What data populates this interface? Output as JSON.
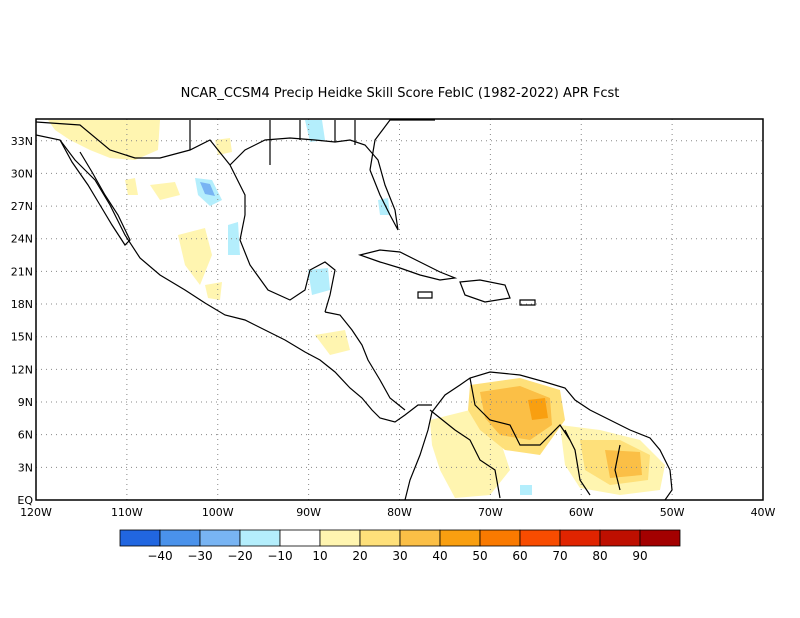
{
  "title": "NCAR_CCSM4 Precip Heidke Skill Score FebIC (1982-2022) APR Fcst",
  "map": {
    "lon_range": [
      -120,
      -40
    ],
    "lat_range": [
      0,
      35
    ],
    "lon_ticks": [
      "120W",
      "110W",
      "100W",
      "90W",
      "80W",
      "70W",
      "60W",
      "50W",
      "40W"
    ],
    "lat_ticks": [
      "EQ",
      "3N",
      "6N",
      "9N",
      "12N",
      "15N",
      "18N",
      "21N",
      "24N",
      "27N",
      "30N",
      "33N"
    ],
    "grid": "dotted"
  },
  "colorbar": {
    "colors": [
      "#2166e0",
      "#4a92eb",
      "#78b4f3",
      "#b4eefc",
      "#ffffff",
      "#fff5b0",
      "#fee07a",
      "#fbbf46",
      "#f99f10",
      "#fa7a00",
      "#f84c00",
      "#e02400",
      "#be0f00",
      "#a30000"
    ],
    "labels": [
      "-40",
      "-30",
      "-20",
      "-10",
      "10",
      "20",
      "30",
      "40",
      "50",
      "60",
      "70",
      "80",
      "90"
    ]
  },
  "colors": {
    "land_line": "#000000",
    "background": "#ffffff"
  }
}
